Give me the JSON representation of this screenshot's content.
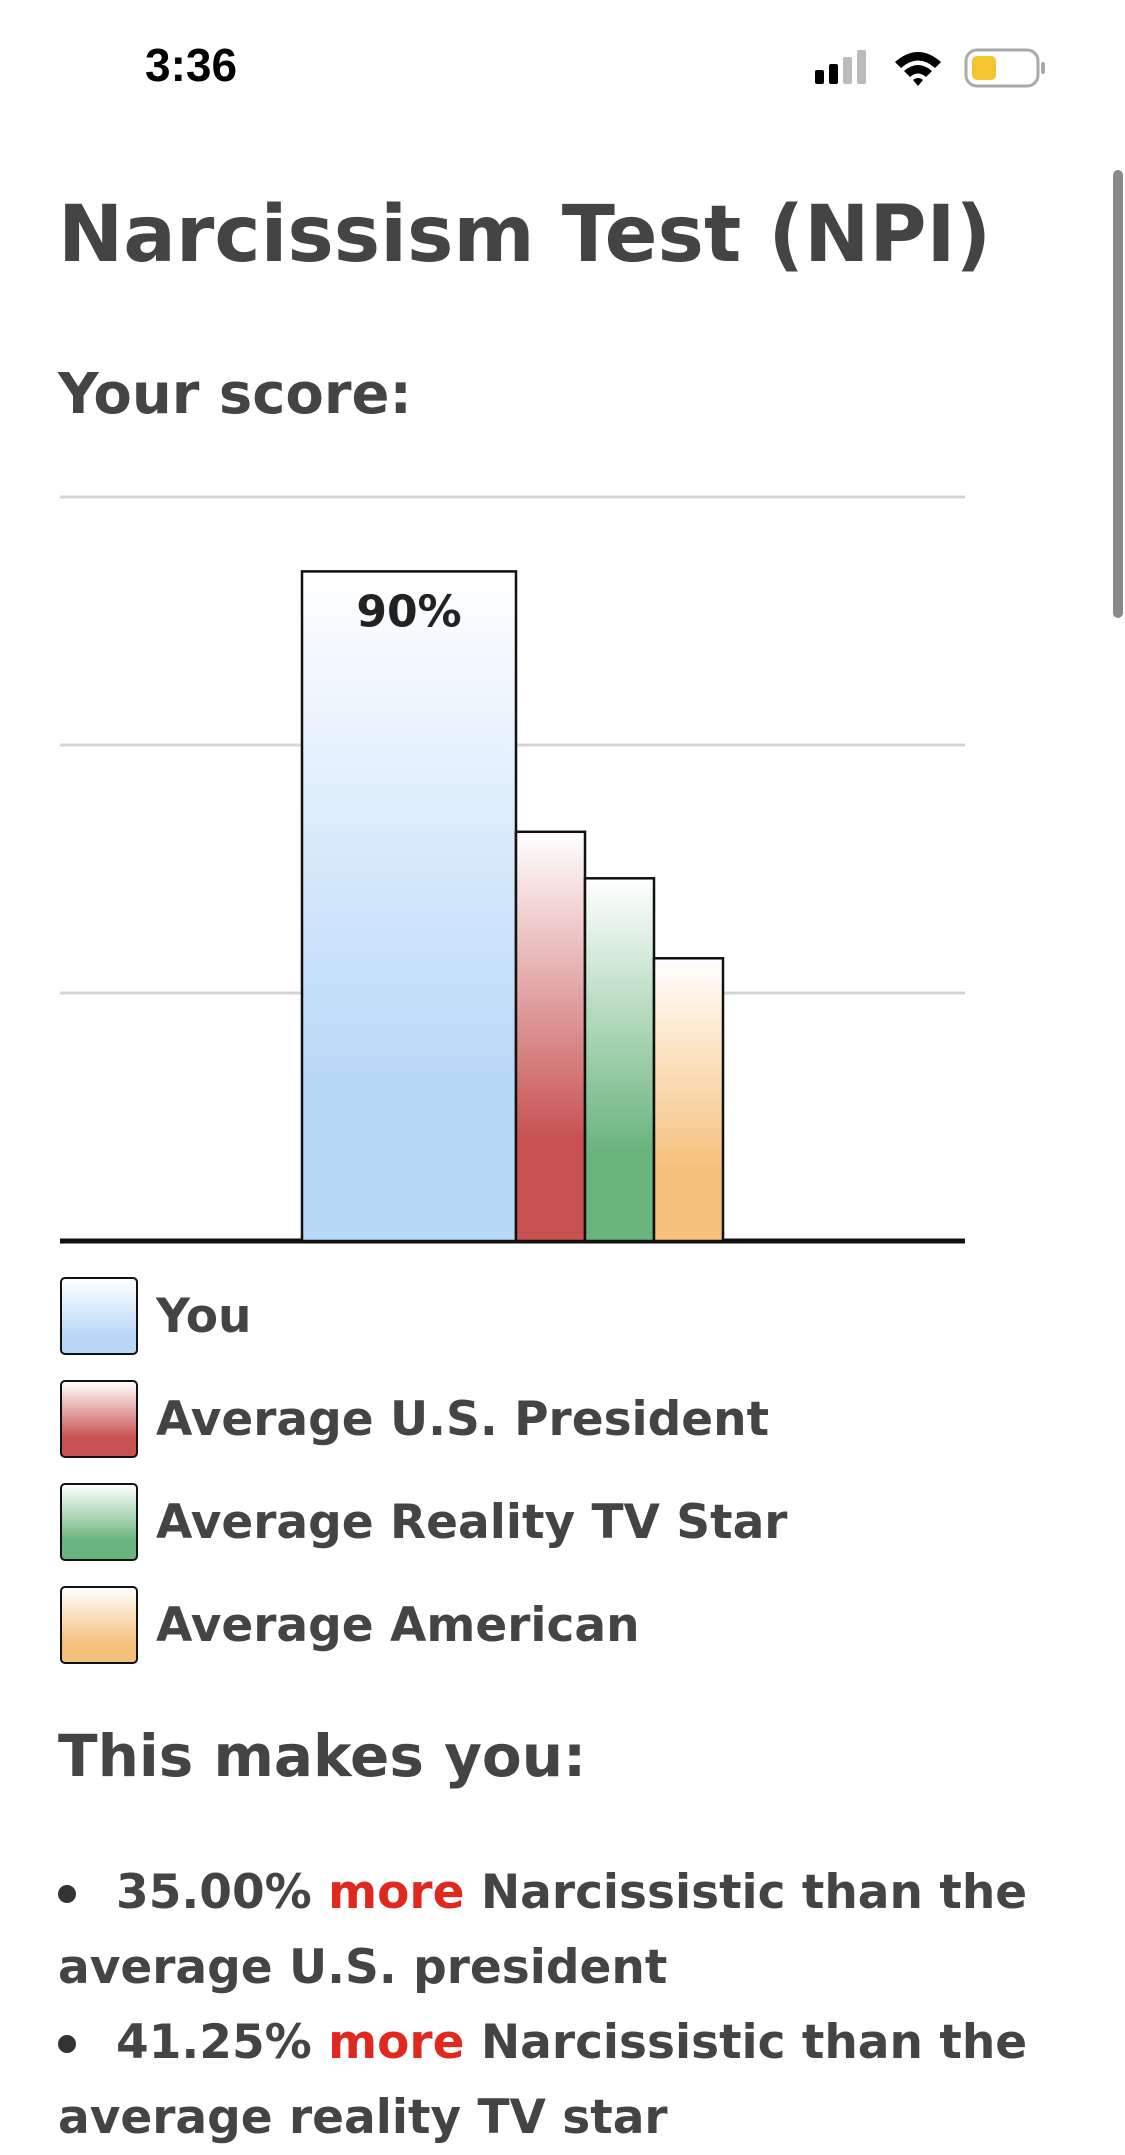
{
  "status_bar": {
    "time": "3:36"
  },
  "page": {
    "title": "Narcissism Test (NPI)",
    "score_heading": "Your score:",
    "result_heading": "This makes you:",
    "results": [
      {
        "percent": "35.00%",
        "highlight": "more",
        "text": "Narcissistic than the average U.S. president"
      },
      {
        "percent": "41.25%",
        "highlight": "more",
        "text": "Narcissistic than the average reality TV star"
      }
    ]
  },
  "chart_data": {
    "type": "bar",
    "ylim": [
      0,
      100
    ],
    "yticks": [
      0,
      33.33,
      66.67,
      100
    ],
    "grid": true,
    "series": [
      {
        "name": "You",
        "color": "#b8d8f8",
        "values": [
          90
        ],
        "value_labels": [
          "90%"
        ]
      },
      {
        "name": "Average U.S. President",
        "color": "#c85252",
        "values": [
          55
        ]
      },
      {
        "name": "Average Reality TV Star",
        "color": "#6ab47e",
        "values": [
          48.75
        ]
      },
      {
        "name": "Average American",
        "color": "#f5c07a",
        "values": [
          38
        ]
      }
    ]
  }
}
